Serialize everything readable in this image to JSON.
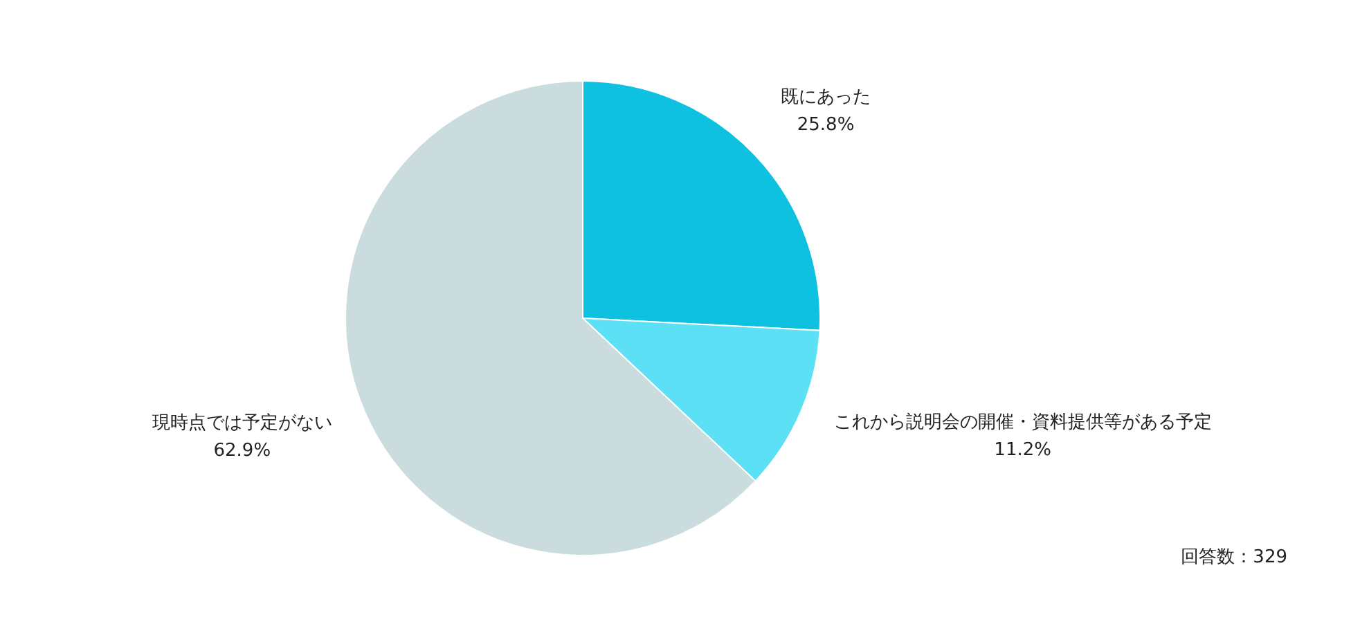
{
  "chart_data": {
    "type": "pie",
    "categories": [
      "既にあった",
      "これから説明会の開催・資料提供等がある予定",
      "現時点では予定がない"
    ],
    "values": [
      25.8,
      11.2,
      62.9
    ],
    "colors": [
      "#0ec1e0",
      "#5ce0f5",
      "#cbdcdf"
    ],
    "value_labels": [
      "25.8%",
      "11.2%",
      "62.9%"
    ],
    "annotations": [
      "回答数：329"
    ],
    "legend": false
  }
}
